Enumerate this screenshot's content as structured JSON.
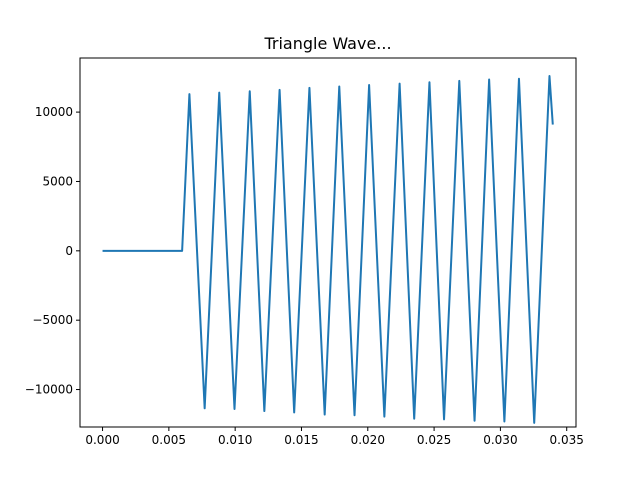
{
  "chart_data": {
    "type": "line",
    "title": "Triangle Wave...",
    "xlabel": "",
    "ylabel": "",
    "xlim": [
      -0.0017,
      0.0357
    ],
    "ylim": [
      -12700,
      13900
    ],
    "x_ticks": [
      0.0,
      0.005,
      0.01,
      0.015,
      0.02,
      0.025,
      0.03,
      0.035
    ],
    "x_tick_labels": [
      "0.000",
      "0.005",
      "0.010",
      "0.015",
      "0.020",
      "0.025",
      "0.030",
      "0.035"
    ],
    "y_ticks": [
      -10000,
      -5000,
      0,
      5000,
      10000
    ],
    "y_tick_labels": [
      "−10000",
      "−5000",
      "0",
      "5000",
      "10000"
    ],
    "grid": false,
    "legend": false,
    "series": [
      {
        "color": "#1f77b4",
        "x": [
          0.0,
          0.006,
          0.00655,
          0.0077,
          0.0088,
          0.00995,
          0.0111,
          0.0122,
          0.01335,
          0.01445,
          0.0156,
          0.01675,
          0.01785,
          0.019,
          0.0201,
          0.02125,
          0.0224,
          0.0235,
          0.02465,
          0.02575,
          0.0269,
          0.02805,
          0.02915,
          0.0303,
          0.0314,
          0.03255,
          0.0337,
          0.03395
        ],
        "y": [
          0,
          0,
          11300,
          -11350,
          11400,
          -11400,
          11500,
          -11550,
          11600,
          -11650,
          11750,
          -11800,
          11850,
          -11850,
          11950,
          -11950,
          12050,
          -12100,
          12150,
          -12150,
          12250,
          -12250,
          12350,
          -12300,
          12400,
          -12400,
          12600,
          9100
        ]
      }
    ]
  }
}
